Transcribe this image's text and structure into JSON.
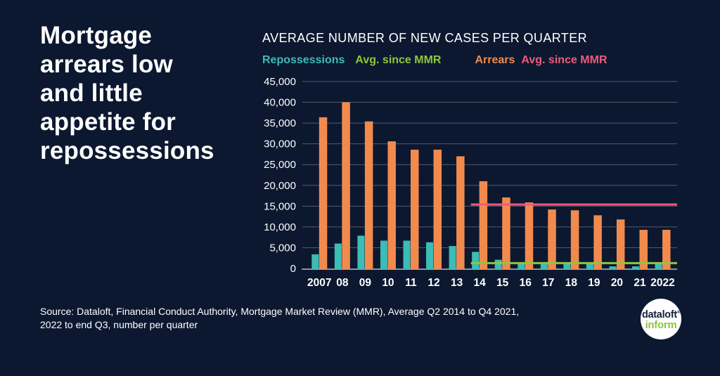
{
  "headline": "Mortgage\narrears low\nand little\nappetite for\nrepossessions",
  "source_note": "Source: Dataloft, Financial Conduct Authority, Mortgage Market Review (MMR), Average Q2 2014 to Q4 2021,\n2022 to end Q3, number per quarter",
  "legend": {
    "repossessions": "Repossessions",
    "avg_since_mmr_repossessions": "Avg. since MMR",
    "arrears": "Arrears",
    "avg_since_mmr_arrears": "Avg. since MMR"
  },
  "logo": {
    "top": "dataloft",
    "mark": "®",
    "bottom": "inform"
  },
  "colors": {
    "background": "#0c1830",
    "teal": "#3cbcb6",
    "orange": "#f28a4e",
    "green": "#8dc63f",
    "pink": "#ef5a7b",
    "gridline": "#525a6e",
    "axis": "#8d93a5",
    "text": "#ffffff",
    "logo_navy": "#12223c"
  },
  "chart_data": {
    "type": "bar",
    "title": "AVERAGE NUMBER OF NEW CASES PER QUARTER",
    "categories": [
      "2007",
      "08",
      "09",
      "10",
      "11",
      "12",
      "13",
      "14",
      "15",
      "16",
      "17",
      "18",
      "19",
      "20",
      "21",
      "2022"
    ],
    "series": [
      {
        "name": "Repossessions",
        "color": "#3cbcb6",
        "values": [
          3400,
          6000,
          7900,
          6700,
          6700,
          6300,
          5400,
          4000,
          2100,
          1200,
          1200,
          1100,
          1100,
          500,
          500,
          1200
        ]
      },
      {
        "name": "Arrears",
        "color": "#f28a4e",
        "values": [
          36400,
          40000,
          35400,
          30600,
          28600,
          28600,
          27000,
          21000,
          17100,
          15900,
          14200,
          14000,
          12800,
          11800,
          9300,
          9300
        ]
      }
    ],
    "avg_lines": [
      {
        "name": "Repossessions avg. since MMR",
        "value": 1300,
        "color": "#8dc63f",
        "start_category": "14",
        "start_category_index": 7
      },
      {
        "name": "Arrears avg. since MMR",
        "value": 15400,
        "color": "#ef5a7b",
        "start_category": "14",
        "start_category_index": 7
      }
    ],
    "ylim": [
      0,
      45000
    ],
    "y_ticks": [
      0,
      5000,
      10000,
      15000,
      20000,
      25000,
      30000,
      35000,
      40000,
      45000
    ],
    "grid": true,
    "legend_position": "top"
  }
}
